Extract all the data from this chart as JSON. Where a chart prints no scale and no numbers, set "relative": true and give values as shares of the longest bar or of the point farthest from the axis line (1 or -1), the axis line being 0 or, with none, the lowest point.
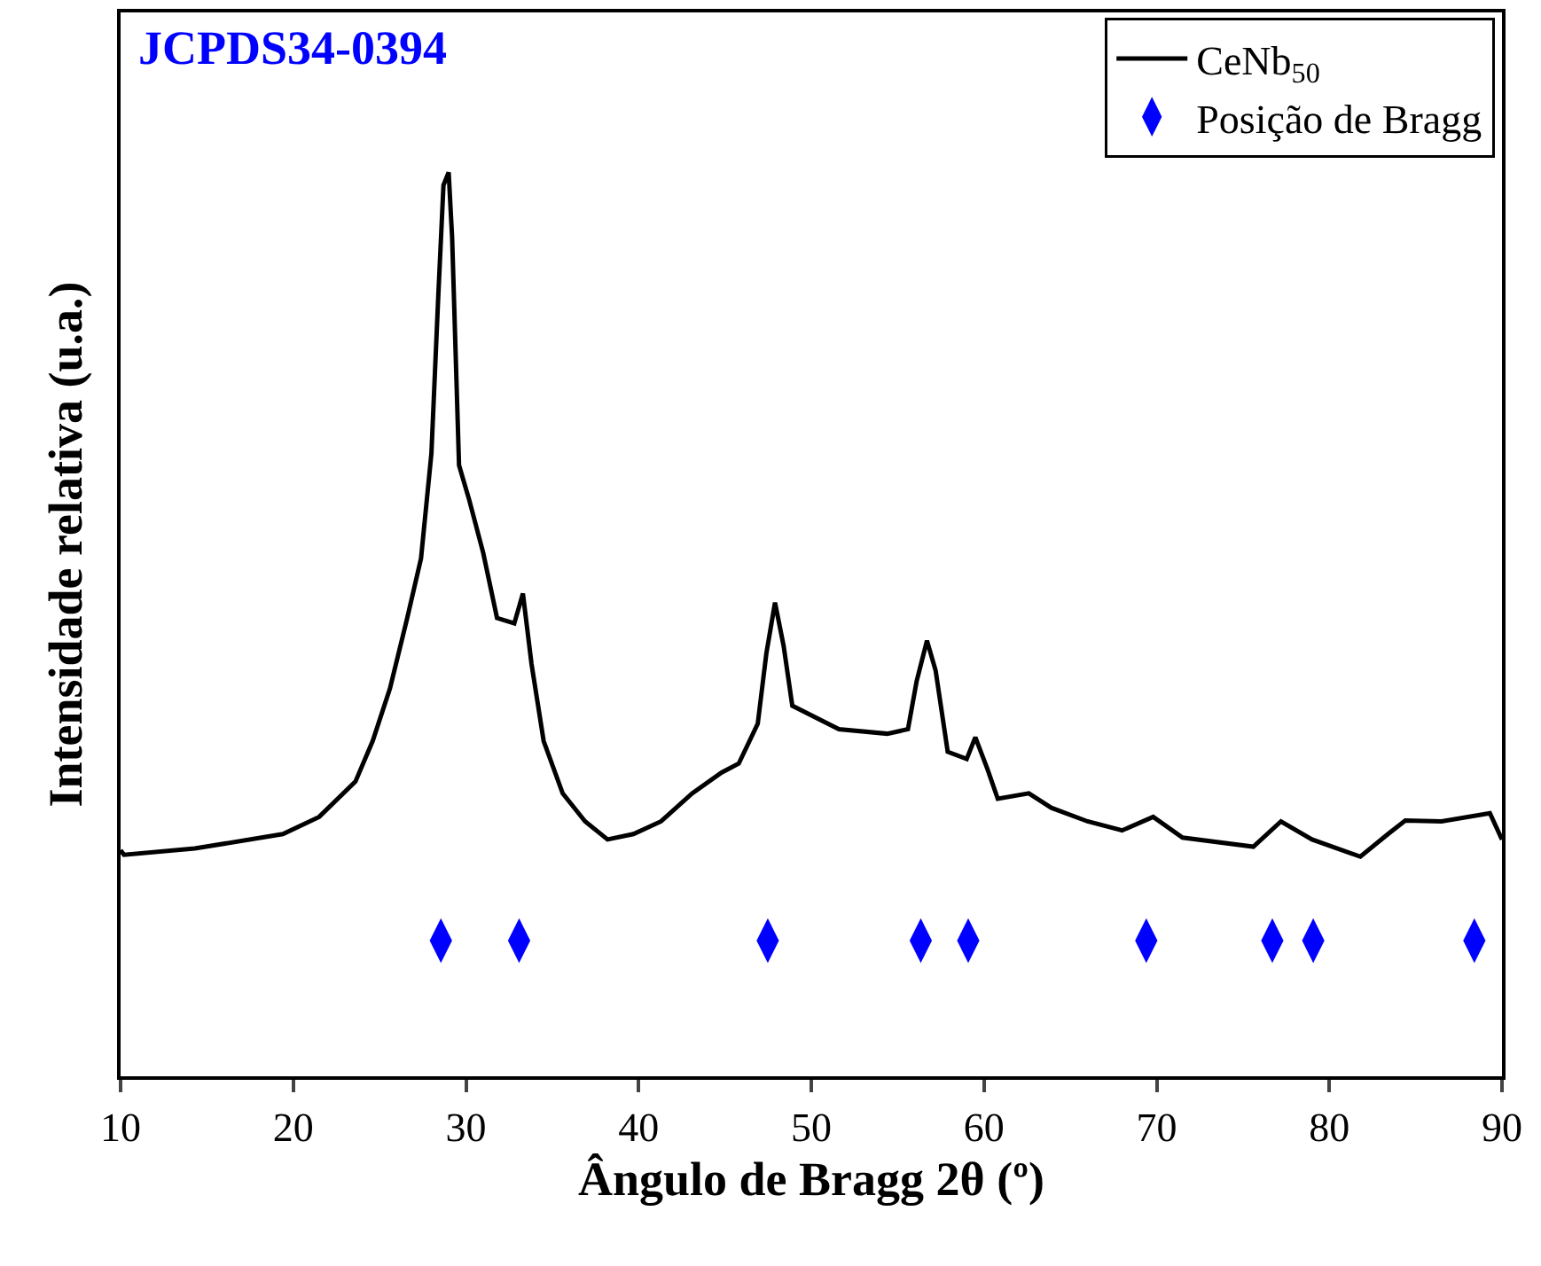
{
  "chart_data": {
    "type": "line",
    "relative": true,
    "xlabel": "Ângulo de Bragg 2θ (º)",
    "ylabel": "Intensidade relativa (u.a.)",
    "xlim": [
      10,
      90
    ],
    "xticks": [
      10,
      20,
      30,
      40,
      50,
      60,
      70,
      80,
      90
    ],
    "tick_labels": "x",
    "legend": "top right",
    "line_style": "solid",
    "annotations": [
      "JCPDS34-0394"
    ],
    "series": [
      {
        "name": "CeNb$_{50}$",
        "color": "#000000",
        "marker": "none",
        "x": [
          10,
          10.2,
          14.3,
          19.4,
          21.5,
          23.6,
          24.6,
          25.6,
          26.6,
          27.4,
          28.0,
          28.4,
          28.7,
          29.0,
          29.2,
          29.6,
          30.2,
          31.0,
          31.8,
          32.8,
          33.3,
          33.8,
          34.5,
          35.6,
          36.9,
          38.2,
          39.7,
          41.3,
          43.1,
          44.8,
          45.8,
          46.9,
          47.4,
          47.9,
          48.4,
          48.9,
          51.6,
          54.4,
          55.6,
          56.1,
          56.7,
          57.2,
          57.9,
          59.0,
          59.5,
          60.2,
          60.8,
          62.6,
          63.9,
          66.0,
          68.0,
          69.8,
          71.5,
          75.6,
          77.2,
          79.0,
          81.8,
          83.4,
          84.4,
          86.5,
          89.3,
          90
        ],
        "values": [
          0.25,
          0.245,
          0.252,
          0.268,
          0.287,
          0.326,
          0.371,
          0.429,
          0.507,
          0.573,
          0.689,
          0.864,
          0.986,
          1.0,
          0.928,
          0.676,
          0.637,
          0.579,
          0.507,
          0.501,
          0.534,
          0.456,
          0.371,
          0.313,
          0.282,
          0.262,
          0.268,
          0.282,
          0.313,
          0.336,
          0.346,
          0.39,
          0.468,
          0.524,
          0.476,
          0.41,
          0.384,
          0.379,
          0.384,
          0.437,
          0.482,
          0.449,
          0.359,
          0.351,
          0.375,
          0.34,
          0.307,
          0.313,
          0.297,
          0.282,
          0.272,
          0.287,
          0.264,
          0.254,
          0.282,
          0.262,
          0.243,
          0.268,
          0.283,
          0.282,
          0.291,
          0.262
        ]
      },
      {
        "name": "Posição de Bragg",
        "type": "scatter",
        "marker": "diamond",
        "color": "#0000ff",
        "x": [
          28.55,
          33.08,
          47.48,
          56.34,
          59.09,
          69.4,
          76.7,
          79.07,
          88.4
        ],
        "values": [
          0.15,
          0.15,
          0.15,
          0.15,
          0.15,
          0.15,
          0.15,
          0.15,
          0.15
        ]
      }
    ]
  }
}
